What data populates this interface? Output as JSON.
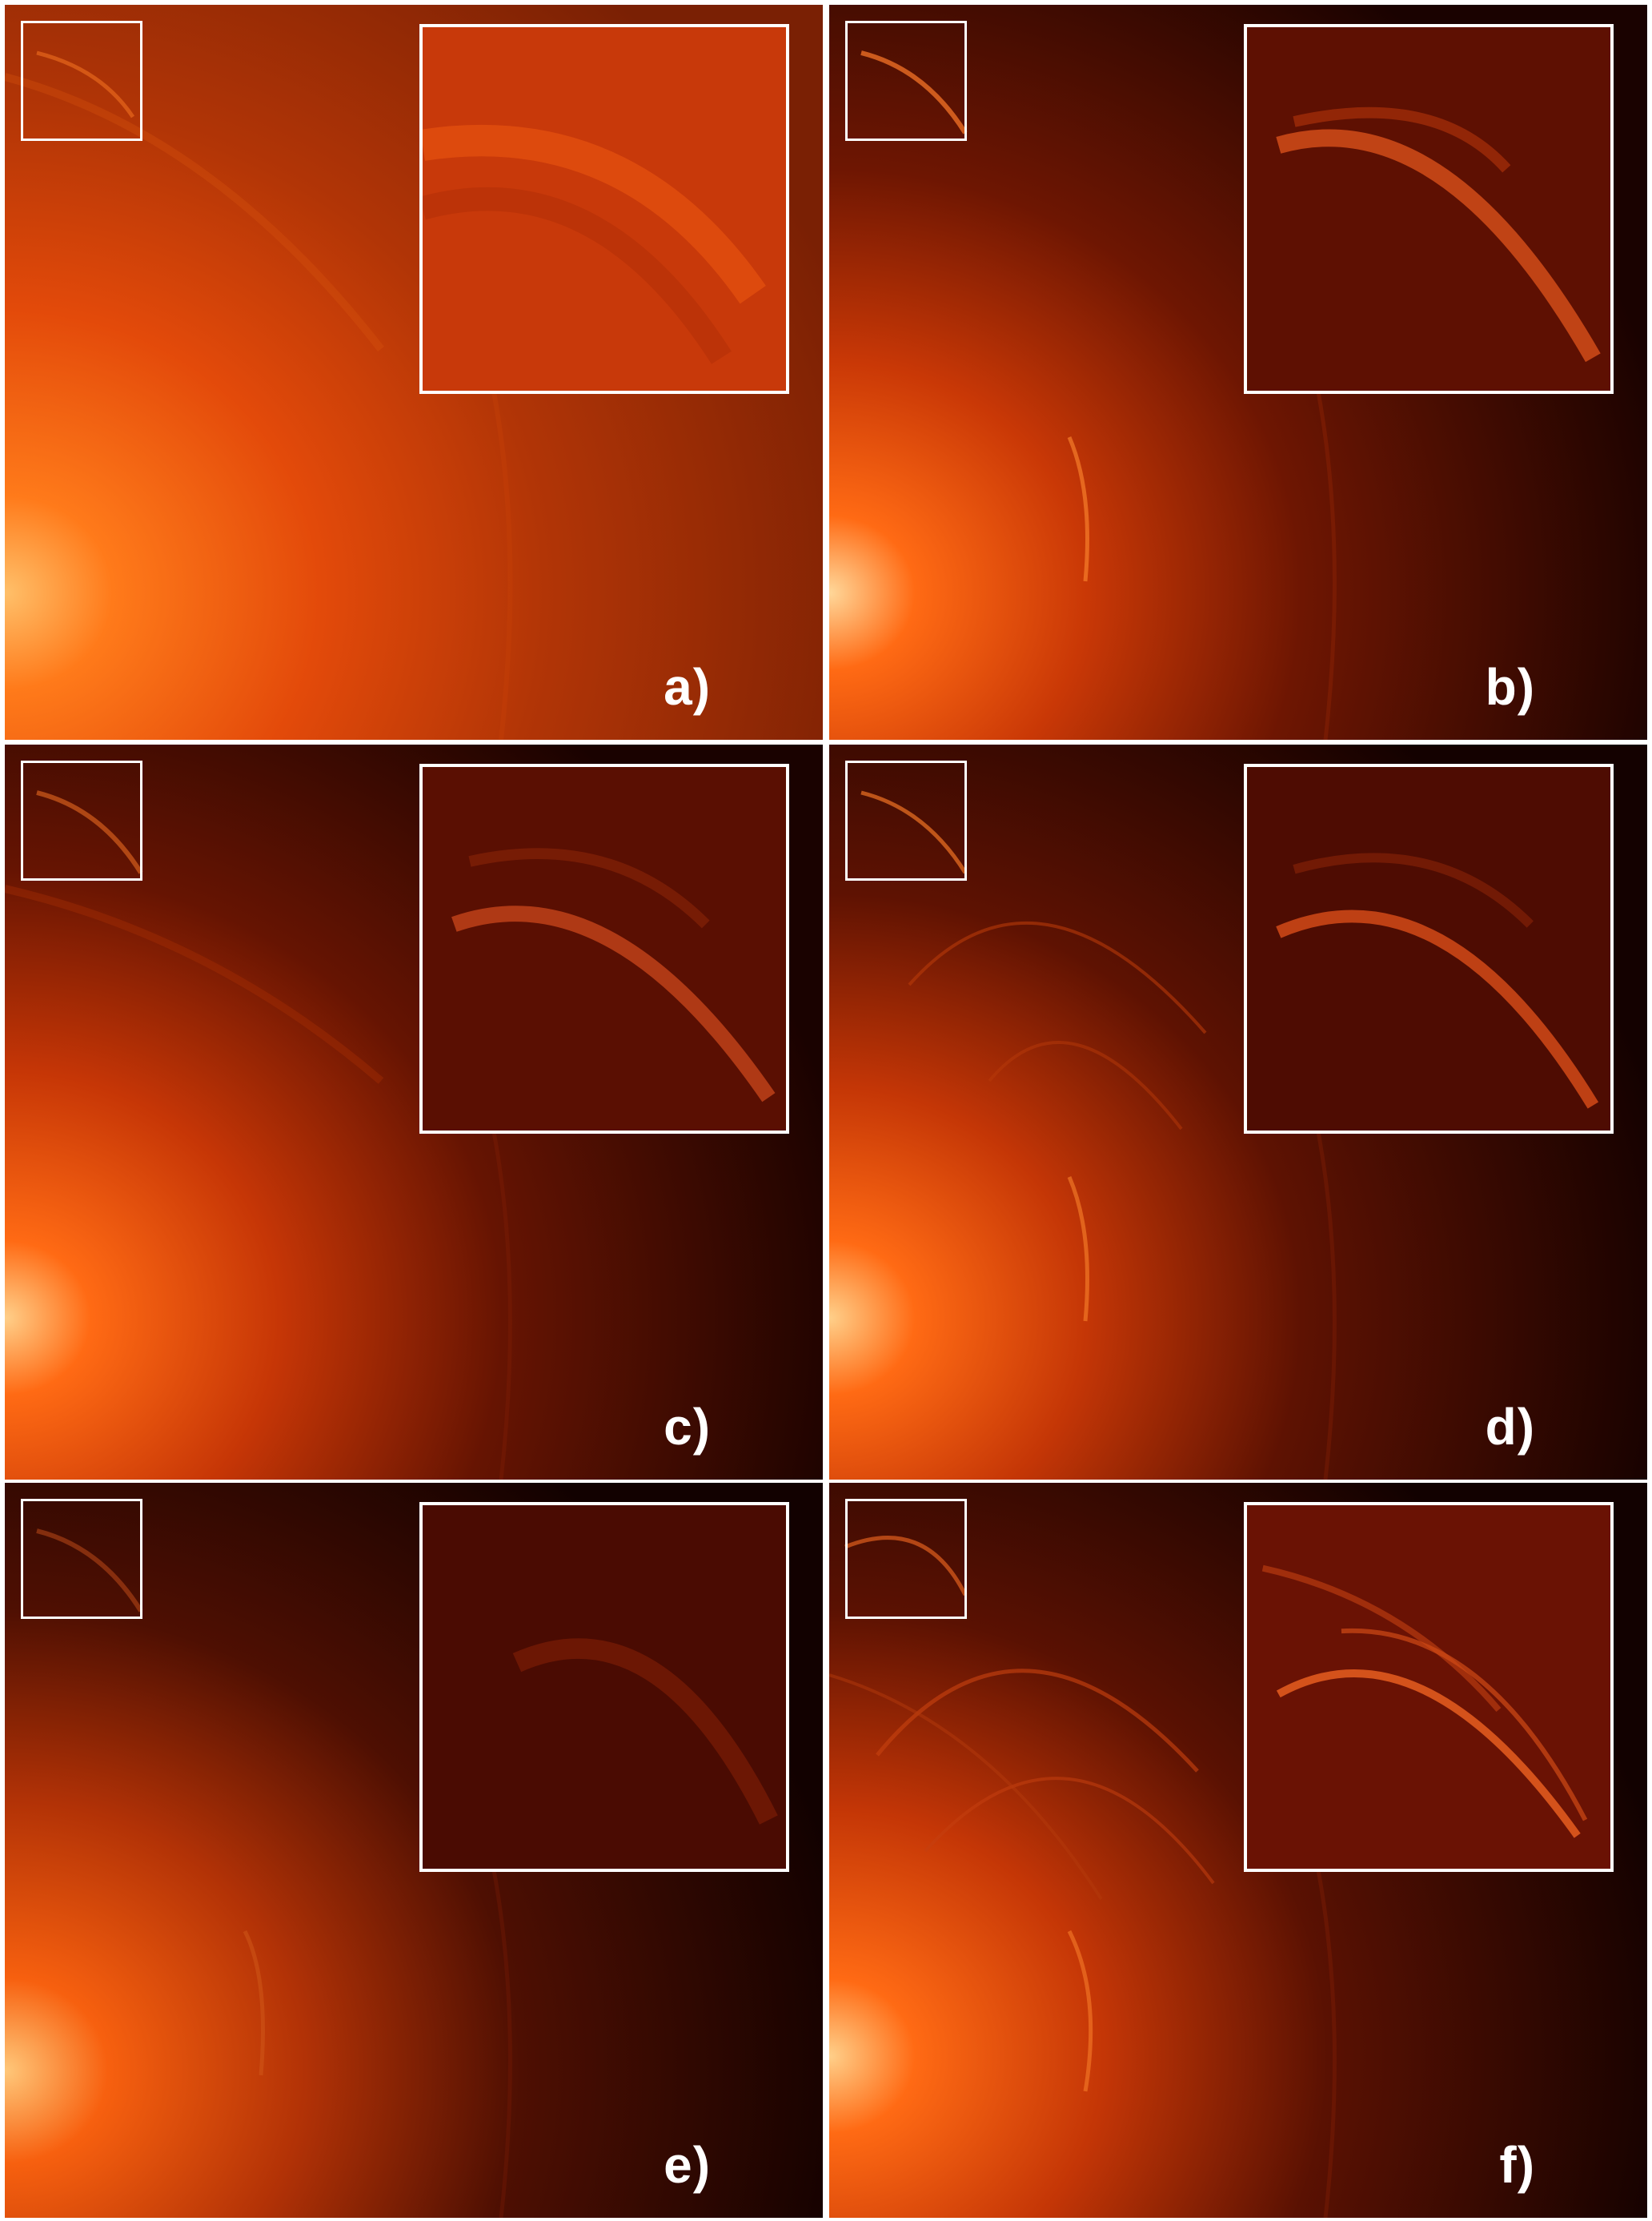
{
  "figure": {
    "panels": [
      {
        "id": "a",
        "label": "a)",
        "accent": "#ff5a10"
      },
      {
        "id": "b",
        "label": "b)",
        "accent": "#ff4a0a"
      },
      {
        "id": "c",
        "label": "c)",
        "accent": "#ff4a0a"
      },
      {
        "id": "d",
        "label": "d)",
        "accent": "#ff4a0a"
      },
      {
        "id": "e",
        "label": "e)",
        "accent": "#ff4a0a"
      },
      {
        "id": "f",
        "label": "f)",
        "accent": "#ff4a0a"
      }
    ],
    "colors": {
      "background": "#ffffff",
      "frame": "#ffffff",
      "hot_core": "#ffd27a",
      "mid": "#e03a06",
      "dark": "#120000"
    }
  }
}
